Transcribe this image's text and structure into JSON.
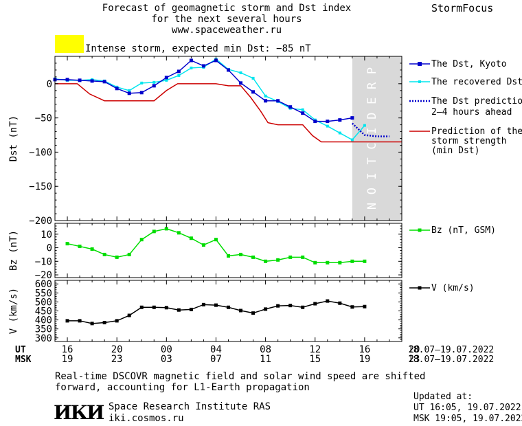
{
  "header": {
    "title_line1": "Forecast of geomagnetic storm and Dst index",
    "title_line2": "for the next several hours",
    "website": "www.spaceweather.ru",
    "brand": "StormFocus",
    "storm_label": "Intense storm, expected min Dst: −85 nT",
    "storm_color": "#ffff00"
  },
  "legend": {
    "dst_kyoto": "The Dst, Kyoto",
    "dst_recovered": "The recovered Dst",
    "dst_prediction_1": "The Dst prediction",
    "dst_prediction_2": "2–4 hours ahead",
    "storm_strength_1": "Prediction of the",
    "storm_strength_2": "storm strength",
    "storm_strength_3": "(min Dst)",
    "bz": "Bz (nT, GSM)",
    "v": "V (km/s)"
  },
  "prediction_word": "PREDICTION",
  "time_axis": {
    "ut_label": "UT",
    "msk_label": "MSK",
    "ut_ticks": [
      "16",
      "20",
      "00",
      "04",
      "08",
      "12",
      "16",
      "20"
    ],
    "msk_ticks": [
      "19",
      "23",
      "03",
      "07",
      "11",
      "15",
      "19",
      "23"
    ],
    "ut_range": "18.07–19.07.2022",
    "msk_range": "18.07–19.07.2022"
  },
  "footer": {
    "note_line1": "Real-time DSCOVR magnetic field and solar wind speed are shifted",
    "note_line2": "forward, accounting for L1-Earth propagation",
    "logo": "ИКИ",
    "institute": "Space Research Institute RAS",
    "site": "iki.cosmos.ru",
    "updated_label": "Updated at:",
    "updated_ut": "UT   16:05, 19.07.2022",
    "updated_msk": "MSK 19:05, 19.07.2022"
  },
  "colors": {
    "dst_kyoto": "#0000cc",
    "dst_recovered": "#00e5ee",
    "dst_prediction": "#0000cc",
    "storm_strength": "#cc0000",
    "bz": "#00dd00",
    "v": "#000000",
    "prediction_zone": "#d9d9d9"
  },
  "chart_data": [
    {
      "type": "line",
      "panel": "dst",
      "ylabel": "Dst (nT)",
      "ylim": [
        -200,
        40
      ],
      "yticks": [
        0,
        -50,
        -100,
        -150,
        -200
      ],
      "xlim": [
        15,
        43
      ],
      "prediction_start": 39,
      "series": [
        {
          "name": "The Dst, Kyoto",
          "x": [
            15,
            16,
            17,
            18,
            19,
            20,
            21,
            22,
            23,
            24,
            25,
            26,
            27,
            28,
            29,
            30,
            31,
            32,
            33,
            34,
            35,
            36,
            37,
            38,
            39
          ],
          "y": [
            6,
            6,
            5,
            4,
            3,
            -7,
            -14,
            -13,
            -3,
            9,
            18,
            34,
            26,
            34,
            20,
            1,
            -12,
            -25,
            -25,
            -34,
            -43,
            -55,
            -55,
            -53,
            -50
          ]
        },
        {
          "name": "The recovered Dst",
          "x": [
            15,
            16,
            17,
            18,
            19,
            20,
            21,
            22,
            23,
            24,
            25,
            26,
            27,
            28,
            29,
            30,
            31,
            32,
            33,
            34,
            35,
            36,
            37,
            38,
            39,
            40
          ],
          "y": [
            7,
            5,
            5,
            6,
            4,
            -5,
            -10,
            1,
            2,
            5,
            12,
            23,
            24,
            36,
            21,
            16,
            8,
            -18,
            -26,
            -36,
            -38,
            -53,
            -62,
            -72,
            -82,
            -61
          ]
        },
        {
          "name": "The Dst prediction",
          "x": [
            39,
            40,
            41,
            42
          ],
          "y": [
            -58,
            -75,
            -77,
            -77
          ]
        },
        {
          "name": "Prediction of the storm strength (min Dst)",
          "x": [
            15,
            16.8,
            17.8,
            19,
            20,
            21,
            22,
            23,
            24,
            24.9,
            25.9,
            27,
            28,
            29,
            30,
            30.8,
            31.6,
            32.2,
            33,
            34,
            35,
            35.8,
            36.5,
            37.5,
            38.5,
            39.5,
            41,
            43
          ],
          "y": [
            0,
            0,
            -15,
            -25,
            -25,
            -25,
            -25,
            -25,
            -10,
            0,
            0,
            0,
            0,
            -3,
            -3,
            -20,
            -40,
            -57,
            -60,
            -60,
            -60,
            -76,
            -85,
            -85,
            -85,
            -85,
            -85,
            -85
          ]
        }
      ]
    },
    {
      "type": "line",
      "panel": "bz",
      "ylabel": "Bz (nT)",
      "ylim": [
        -22,
        18
      ],
      "yticks": [
        10,
        0,
        -10,
        -20
      ],
      "xlim": [
        15,
        43
      ],
      "series": [
        {
          "name": "Bz (nT, GSM)",
          "x": [
            16,
            17,
            18,
            19,
            20,
            21,
            22,
            23,
            24,
            25,
            26,
            27,
            28,
            29,
            30,
            31,
            32,
            33,
            34,
            35,
            36,
            37,
            38,
            39,
            40
          ],
          "y": [
            3,
            1,
            -1,
            -5,
            -7,
            -5,
            6,
            12,
            14,
            11,
            7,
            2,
            6,
            -6,
            -5,
            -7,
            -10,
            -9,
            -7,
            -7,
            -11,
            -11,
            -11,
            -10,
            -10
          ]
        }
      ]
    },
    {
      "type": "line",
      "panel": "v",
      "ylabel": "V (km/s)",
      "ylim": [
        280,
        620
      ],
      "yticks": [
        600,
        550,
        500,
        450,
        400,
        350,
        300
      ],
      "xlim": [
        15,
        43
      ],
      "series": [
        {
          "name": "V (km/s)",
          "x": [
            16,
            17,
            18,
            19,
            20,
            21,
            22,
            23,
            24,
            25,
            26,
            27,
            28,
            29,
            30,
            31,
            32,
            33,
            34,
            35,
            36,
            37,
            38,
            39,
            40
          ],
          "y": [
            395,
            395,
            380,
            385,
            395,
            425,
            470,
            470,
            468,
            455,
            458,
            485,
            482,
            470,
            452,
            438,
            460,
            478,
            480,
            470,
            490,
            505,
            493,
            472,
            474
          ]
        }
      ]
    }
  ]
}
